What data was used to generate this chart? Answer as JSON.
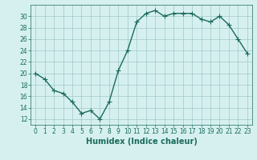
{
  "x": [
    0,
    1,
    2,
    3,
    4,
    5,
    6,
    7,
    8,
    9,
    10,
    11,
    12,
    13,
    14,
    15,
    16,
    17,
    18,
    19,
    20,
    21,
    22,
    23
  ],
  "y": [
    20,
    19,
    17,
    16.5,
    15,
    13,
    13.5,
    12,
    15,
    20.5,
    24,
    29,
    30.5,
    31,
    30,
    30.5,
    30.5,
    30.5,
    29.5,
    29,
    30,
    28.5,
    26,
    23.5
  ],
  "line_color": "#1a6b5a",
  "marker": "D",
  "marker_size": 2.5,
  "bg_color": "#d6f0f0",
  "grid_color": "#a0c8c8",
  "xlabel": "Humidex (Indice chaleur)",
  "xlim": [
    -0.5,
    23.5
  ],
  "ylim": [
    11,
    32
  ],
  "xticks": [
    0,
    1,
    2,
    3,
    4,
    5,
    6,
    7,
    8,
    9,
    10,
    11,
    12,
    13,
    14,
    15,
    16,
    17,
    18,
    19,
    20,
    21,
    22,
    23
  ],
  "yticks": [
    12,
    14,
    16,
    18,
    20,
    22,
    24,
    26,
    28,
    30
  ],
  "tick_labelsize": 5.5,
  "xlabel_fontsize": 7.0,
  "line_width": 1.0
}
